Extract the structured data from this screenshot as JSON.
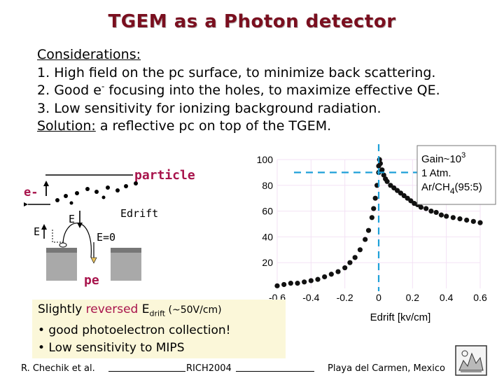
{
  "title": "TGEM as a Photon detector",
  "considerations": {
    "heading": "Considerations:",
    "items": [
      {
        "num": "1.",
        "text": "High field on the pc surface, to minimize back scattering."
      },
      {
        "num": "2.",
        "pre": "Good e",
        "sup": "-",
        "post": " focusing into the holes, to maximize effective QE."
      },
      {
        "num": "3.",
        "text": "Low sensitivity for ionizing background radiation."
      }
    ],
    "solution_label": "Solution:",
    "solution_text": " a reflective pc on top of the TGEM."
  },
  "diagram": {
    "particle": "particle",
    "e_minus": "e-",
    "e_small": "E",
    "edrift": "Edrift",
    "e_left": "E",
    "e_zero": "E=0",
    "pe": "pe"
  },
  "chart_data": {
    "type": "scatter",
    "xlabel": "Edrift [kv/cm]",
    "ylabel": "",
    "xlim": [
      -0.6,
      0.6
    ],
    "ylim": [
      0,
      100
    ],
    "xticks": [
      "-0.6",
      "-0.4",
      "-0.2",
      "0",
      "0.2",
      "0.4",
      "0.6"
    ],
    "yticks": [
      "20",
      "40",
      "60",
      "80",
      "100"
    ],
    "legend": {
      "line1_pre": "Gain~10",
      "line1_sup": "3",
      "line2": "1 Atm.",
      "line3_pre": "Ar/CH",
      "line3_sub": "4",
      "line3_post": "(95:5)"
    },
    "points": [
      {
        "x": -0.6,
        "y": 2
      },
      {
        "x": -0.56,
        "y": 3
      },
      {
        "x": -0.52,
        "y": 4
      },
      {
        "x": -0.48,
        "y": 4
      },
      {
        "x": -0.44,
        "y": 5
      },
      {
        "x": -0.4,
        "y": 6
      },
      {
        "x": -0.36,
        "y": 7
      },
      {
        "x": -0.32,
        "y": 9
      },
      {
        "x": -0.28,
        "y": 11
      },
      {
        "x": -0.24,
        "y": 13
      },
      {
        "x": -0.2,
        "y": 16
      },
      {
        "x": -0.17,
        "y": 20
      },
      {
        "x": -0.14,
        "y": 24
      },
      {
        "x": -0.11,
        "y": 30
      },
      {
        "x": -0.08,
        "y": 38
      },
      {
        "x": -0.06,
        "y": 45
      },
      {
        "x": -0.04,
        "y": 55
      },
      {
        "x": -0.03,
        "y": 62
      },
      {
        "x": -0.02,
        "y": 70
      },
      {
        "x": -0.01,
        "y": 80
      },
      {
        "x": 0.0,
        "y": 90
      },
      {
        "x": 0.0,
        "y": 95
      },
      {
        "x": 0.005,
        "y": 100
      },
      {
        "x": 0.01,
        "y": 97
      },
      {
        "x": 0.02,
        "y": 92
      },
      {
        "x": 0.03,
        "y": 88
      },
      {
        "x": 0.04,
        "y": 85
      },
      {
        "x": 0.05,
        "y": 83
      },
      {
        "x": 0.07,
        "y": 80
      },
      {
        "x": 0.09,
        "y": 78
      },
      {
        "x": 0.11,
        "y": 76
      },
      {
        "x": 0.13,
        "y": 74
      },
      {
        "x": 0.15,
        "y": 72
      },
      {
        "x": 0.17,
        "y": 70
      },
      {
        "x": 0.19,
        "y": 68
      },
      {
        "x": 0.21,
        "y": 66
      },
      {
        "x": 0.23,
        "y": 65
      },
      {
        "x": 0.25,
        "y": 63
      },
      {
        "x": 0.28,
        "y": 62
      },
      {
        "x": 0.31,
        "y": 60
      },
      {
        "x": 0.34,
        "y": 59
      },
      {
        "x": 0.37,
        "y": 57
      },
      {
        "x": 0.4,
        "y": 56
      },
      {
        "x": 0.44,
        "y": 55
      },
      {
        "x": 0.48,
        "y": 54
      },
      {
        "x": 0.52,
        "y": 53
      },
      {
        "x": 0.56,
        "y": 52
      },
      {
        "x": 0.6,
        "y": 51
      }
    ],
    "guide_x": 0,
    "guide_y": 90
  },
  "summary": {
    "line1_pre": "Slightly ",
    "line1_accent": "reversed",
    "line1_mid": " E",
    "line1_sub": "drift",
    "line1_post": " (~50V/cm)",
    "bullet2": "• good photoelectron collection!",
    "bullet3": "• Low sensitivity to MIPS"
  },
  "footer": {
    "author": "R. Chechik et al.",
    "conference": "RICH2004",
    "location": "Playa del Carmen, Mexico"
  },
  "colors": {
    "title": "#7a0f1f",
    "particle": "#a8144c",
    "accent": "#a8144c",
    "guide": "#1fa0d8",
    "grid": "#f3e2f5",
    "summary_bg": "#fbf7d9",
    "pe": "#e8c25e"
  }
}
